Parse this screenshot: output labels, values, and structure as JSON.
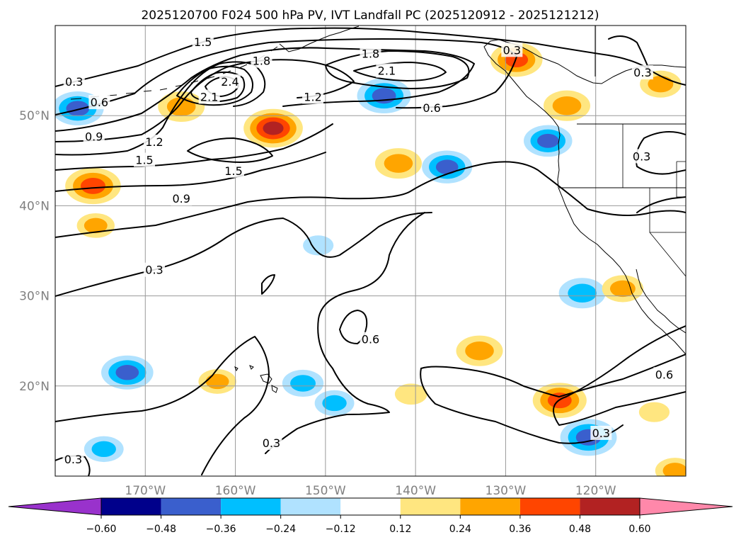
{
  "chart_data": {
    "type": "contour_map",
    "title": "2025120700 F024 500 hPa PV, IVT Landfall PC (2025120912 - 2025121212)",
    "projection": "PlateCarree",
    "extent": {
      "lon": [
        -180,
        -110
      ],
      "lat": [
        10,
        60
      ]
    },
    "grid": true,
    "xticks": [
      {
        "lon": -170,
        "label": "170°W"
      },
      {
        "lon": -160,
        "label": "160°W"
      },
      {
        "lon": -150,
        "label": "150°W"
      },
      {
        "lon": -140,
        "label": "140°W"
      },
      {
        "lon": -130,
        "label": "130°W"
      },
      {
        "lon": -120,
        "label": "120°W"
      }
    ],
    "yticks": [
      {
        "lat": 50,
        "label": "50°N"
      },
      {
        "lat": 40,
        "label": "40°N"
      },
      {
        "lat": 30,
        "label": "30°N"
      },
      {
        "lat": 20,
        "label": "20°N"
      }
    ],
    "colorbar": {
      "extend": "both",
      "levels": [
        -0.6,
        -0.48,
        -0.36,
        -0.24,
        -0.12,
        0.12,
        0.24,
        0.36,
        0.48,
        0.6
      ],
      "tick_labels": [
        "−0.60",
        "−0.48",
        "−0.36",
        "−0.24",
        "−0.12",
        "0.12",
        "0.24",
        "0.36",
        "0.48",
        "0.60"
      ],
      "colors": [
        "#9932cc",
        "#00008b",
        "#3a5fcd",
        "#00bfff",
        "#b0e2ff",
        "#ffffff",
        "#ffe680",
        "#ffa500",
        "#ff4500",
        "#b22222",
        "#ff88aa"
      ]
    },
    "pv_contour_levels": [
      0.3,
      0.6,
      0.9,
      1.2,
      1.5,
      1.8,
      2.1,
      2.4
    ],
    "contour_labels": [
      {
        "text": "0.3",
        "lon": -177.9,
        "lat": 53.8
      },
      {
        "text": "0.6",
        "lon": -175.1,
        "lat": 51.5
      },
      {
        "text": "0.9",
        "lon": -175.7,
        "lat": 47.7
      },
      {
        "text": "1.2",
        "lon": -169.0,
        "lat": 47.1
      },
      {
        "text": "1.5",
        "lon": -170.1,
        "lat": 45.1
      },
      {
        "text": "1.5",
        "lon": -160.2,
        "lat": 43.9
      },
      {
        "text": "1.5",
        "lon": -163.6,
        "lat": 58.2
      },
      {
        "text": "1.8",
        "lon": -157.1,
        "lat": 56.1
      },
      {
        "text": "2.1",
        "lon": -162.9,
        "lat": 52.1
      },
      {
        "text": "2.4",
        "lon": -160.6,
        "lat": 53.8
      },
      {
        "text": "1.2",
        "lon": -151.4,
        "lat": 52.1
      },
      {
        "text": "1.8",
        "lon": -145.0,
        "lat": 56.9
      },
      {
        "text": "2.1",
        "lon": -143.2,
        "lat": 55.0
      },
      {
        "text": "0.6",
        "lon": -138.2,
        "lat": 50.9
      },
      {
        "text": "0.9",
        "lon": -166.0,
        "lat": 40.8
      },
      {
        "text": "0.3",
        "lon": -169.0,
        "lat": 32.9
      },
      {
        "text": "0.6",
        "lon": -145.0,
        "lat": 25.2
      },
      {
        "text": "0.3",
        "lon": -156.0,
        "lat": 13.7
      },
      {
        "text": "0.3",
        "lon": -178.0,
        "lat": 11.9
      },
      {
        "text": "0.3",
        "lon": -129.3,
        "lat": 57.3
      },
      {
        "text": "0.3",
        "lon": -114.8,
        "lat": 54.8
      },
      {
        "text": "0.3",
        "lon": -114.9,
        "lat": 45.5
      },
      {
        "text": "0.6",
        "lon": -112.4,
        "lat": 21.3
      },
      {
        "text": "0.3",
        "lon": -119.4,
        "lat": 14.8
      }
    ],
    "ivt_pc_anomalies": [
      {
        "lon": -177.5,
        "lat": 50.8,
        "value": -0.4
      },
      {
        "lon": -143.5,
        "lat": 52.2,
        "value": -0.42
      },
      {
        "lon": -136.5,
        "lat": 44.3,
        "value": -0.38
      },
      {
        "lon": -125.3,
        "lat": 47.2,
        "value": -0.36
      },
      {
        "lon": -121.5,
        "lat": 30.3,
        "value": -0.34
      },
      {
        "lon": -172.0,
        "lat": 21.5,
        "value": -0.4
      },
      {
        "lon": -152.5,
        "lat": 20.3,
        "value": -0.28
      },
      {
        "lon": -149.0,
        "lat": 18.1,
        "value": -0.26
      },
      {
        "lon": -120.8,
        "lat": 14.3,
        "value": -0.45
      },
      {
        "lon": -174.6,
        "lat": 13.0,
        "value": -0.26
      },
      {
        "lon": -166.0,
        "lat": 51.0,
        "value": 0.34
      },
      {
        "lon": -155.8,
        "lat": 48.6,
        "value": 0.48
      },
      {
        "lon": -175.8,
        "lat": 42.2,
        "value": 0.44
      },
      {
        "lon": -141.9,
        "lat": 44.7,
        "value": 0.34
      },
      {
        "lon": -128.8,
        "lat": 56.2,
        "value": 0.4
      },
      {
        "lon": -123.2,
        "lat": 51.1,
        "value": 0.34
      },
      {
        "lon": -112.8,
        "lat": 53.5,
        "value": 0.28
      },
      {
        "lon": -124.0,
        "lat": 18.4,
        "value": 0.42
      },
      {
        "lon": -132.9,
        "lat": 23.9,
        "value": 0.34
      },
      {
        "lon": -117.0,
        "lat": 30.8,
        "value": 0.28
      },
      {
        "lon": -111.2,
        "lat": 10.6,
        "value": 0.26
      },
      {
        "lon": -175.5,
        "lat": 37.8,
        "value": 0.24
      },
      {
        "lon": -162.0,
        "lat": 20.5,
        "value": 0.24
      },
      {
        "lon": -150.8,
        "lat": 35.6,
        "value": -0.16
      },
      {
        "lon": -140.5,
        "lat": 19.1,
        "value": 0.18
      },
      {
        "lon": -113.5,
        "lat": 17.1,
        "value": 0.16
      }
    ]
  }
}
